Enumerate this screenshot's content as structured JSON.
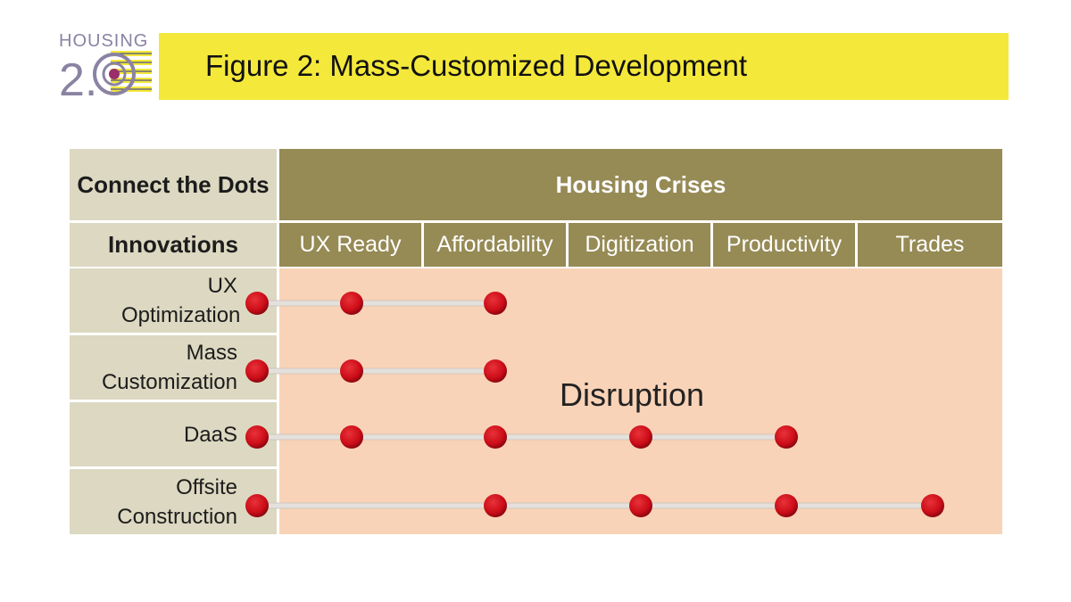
{
  "logo": {
    "word": "HOUSING",
    "version": "2.0"
  },
  "title": "Figure 2: Mass-Customized Development",
  "table": {
    "corner_label": "Connect the Dots",
    "header": "Housing Crises",
    "innovations_label": "Innovations",
    "columns": [
      "UX Ready",
      "Affordability",
      "Digitization",
      "Productivity",
      "Trades"
    ],
    "rows": [
      {
        "label": "UX Optimization",
        "dots": [
          1,
          2
        ]
      },
      {
        "label": "Mass Customization",
        "dots": [
          1,
          2
        ]
      },
      {
        "label": "DaaS",
        "dots": [
          1,
          2,
          3,
          4
        ]
      },
      {
        "label": "Offsite Construction",
        "dots": [
          2,
          3,
          4,
          5
        ]
      }
    ],
    "area_label": "Disruption"
  },
  "colors": {
    "title_bar": "#f4e83b",
    "header": "#968a55",
    "label_cells": "#dcd8c1",
    "area": "#f9d3b7",
    "dot": "#cc0d18"
  }
}
